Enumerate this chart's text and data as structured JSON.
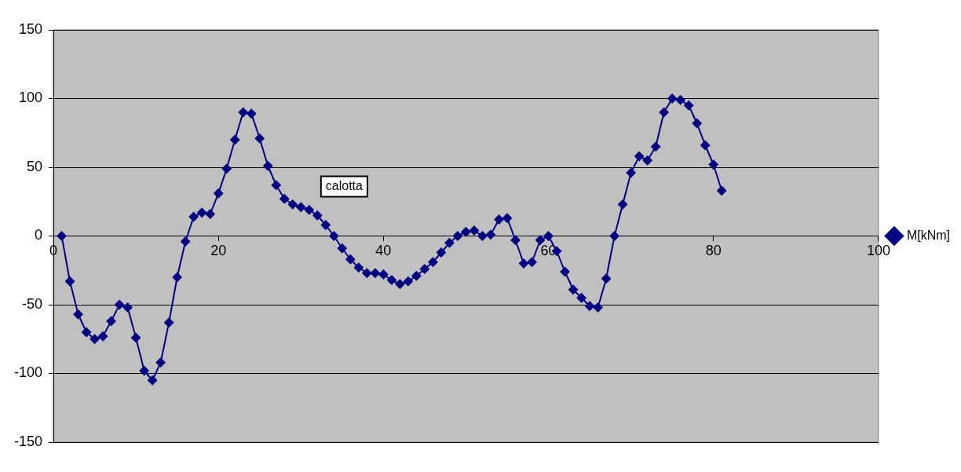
{
  "chart_data": {
    "type": "line",
    "x": [
      1,
      2,
      3,
      4,
      5,
      6,
      7,
      8,
      9,
      10,
      11,
      12,
      13,
      14,
      15,
      16,
      17,
      18,
      19,
      20,
      21,
      22,
      23,
      24,
      25,
      26,
      27,
      28,
      29,
      30,
      31,
      32,
      33,
      34,
      35,
      36,
      37,
      38,
      39,
      40,
      41,
      42,
      43,
      44,
      45,
      46,
      47,
      48,
      49,
      50,
      51,
      52,
      53,
      54,
      55,
      56,
      57,
      58,
      59,
      60,
      61,
      62,
      63,
      64,
      65,
      66,
      67,
      68,
      69,
      70,
      71,
      72,
      73,
      74,
      75,
      76,
      77,
      78,
      79,
      80,
      81
    ],
    "series": [
      {
        "name": "M[kNm]",
        "color": "#000080",
        "values": [
          0,
          -33,
          -57,
          -70,
          -75,
          -73,
          -62,
          -50,
          -52,
          -74,
          -98,
          -105,
          -92,
          -63,
          -30,
          -4,
          14,
          17,
          16,
          31,
          49,
          70,
          90,
          89,
          71,
          51,
          37,
          27,
          23,
          21,
          19,
          15,
          8,
          0,
          -9,
          -17,
          -23,
          -27,
          -27,
          -28,
          -32,
          -35,
          -33,
          -29,
          -24,
          -19,
          -12,
          -5,
          0,
          3,
          4,
          0,
          1,
          12,
          13,
          -3,
          -20,
          -19,
          -3,
          0,
          -11,
          -26,
          -39,
          -45,
          -51,
          -52,
          -31,
          0,
          23,
          46,
          58,
          55,
          65,
          90,
          100,
          99,
          95,
          82,
          66,
          52,
          33
        ]
      }
    ],
    "xlim": [
      0,
      100
    ],
    "xticks": [
      0,
      20,
      40,
      60,
      80,
      100
    ],
    "ylim": [
      -150,
      150
    ],
    "yticks": [
      -150,
      -100,
      -50,
      0,
      50,
      100,
      150
    ],
    "annotations": [
      "calotta"
    ],
    "grid": "y",
    "legend": "right",
    "marker": "diamond",
    "line_style": "solid"
  }
}
